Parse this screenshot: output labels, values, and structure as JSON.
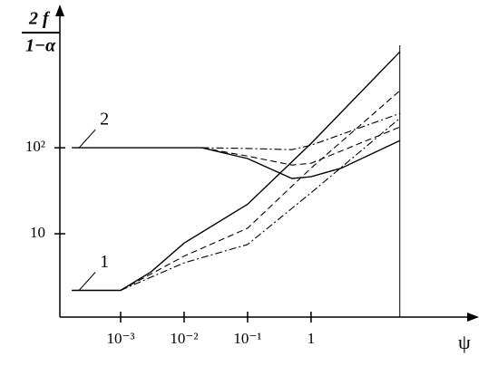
{
  "chart_data": {
    "type": "line",
    "y_label_numerator": "2 f",
    "y_label_denominator": "1−α",
    "x_label": "ψ",
    "xscale": "log",
    "yscale": "log",
    "xlim": [
      0.0001,
      400
    ],
    "ylim": [
      1,
      4000
    ],
    "xticks": [
      {
        "value": 0.001,
        "label": "10⁻³"
      },
      {
        "value": 0.01,
        "label": "10⁻²"
      },
      {
        "value": 0.1,
        "label": "10⁻¹"
      },
      1
    ],
    "yticks": [
      10,
      {
        "value": 100,
        "label": "10²"
      }
    ],
    "vertical_line_x": 25,
    "annotations": [
      "1",
      "2"
    ],
    "series": [
      {
        "color": "#000",
        "dash": "solid",
        "x": [
          0.00017,
          0.001,
          0.003,
          0.01,
          0.1,
          1,
          25
        ],
        "values": [
          2.2,
          2.2,
          3.6,
          7.8,
          22,
          112,
          1300
        ]
      },
      {
        "color": "#000",
        "dash": "dashed",
        "x": [
          0.001,
          0.01,
          0.1,
          1,
          25
        ],
        "values": [
          2.2,
          5.5,
          11.6,
          58,
          460
        ]
      },
      {
        "color": "#000",
        "dash": "dashdot",
        "x": [
          0.001,
          0.01,
          0.1,
          1,
          25
        ],
        "values": [
          2.2,
          4.6,
          7.5,
          30,
          220
        ]
      },
      {
        "color": "#000",
        "dash": "solid",
        "x": [
          0.00017,
          0.019,
          0.1,
          0.5,
          1,
          3,
          25
        ],
        "values": [
          100,
          100,
          75,
          44,
          46,
          58,
          121
        ]
      },
      {
        "color": "#000",
        "dash": "dashed",
        "x": [
          0.019,
          0.1,
          0.5,
          1,
          25
        ],
        "values": [
          100,
          80,
          63,
          66,
          174
        ]
      },
      {
        "color": "#000",
        "dash": "dashdot",
        "x": [
          0.019,
          0.1,
          0.5,
          1,
          25
        ],
        "values": [
          100,
          98,
          95,
          107,
          250
        ]
      }
    ]
  }
}
